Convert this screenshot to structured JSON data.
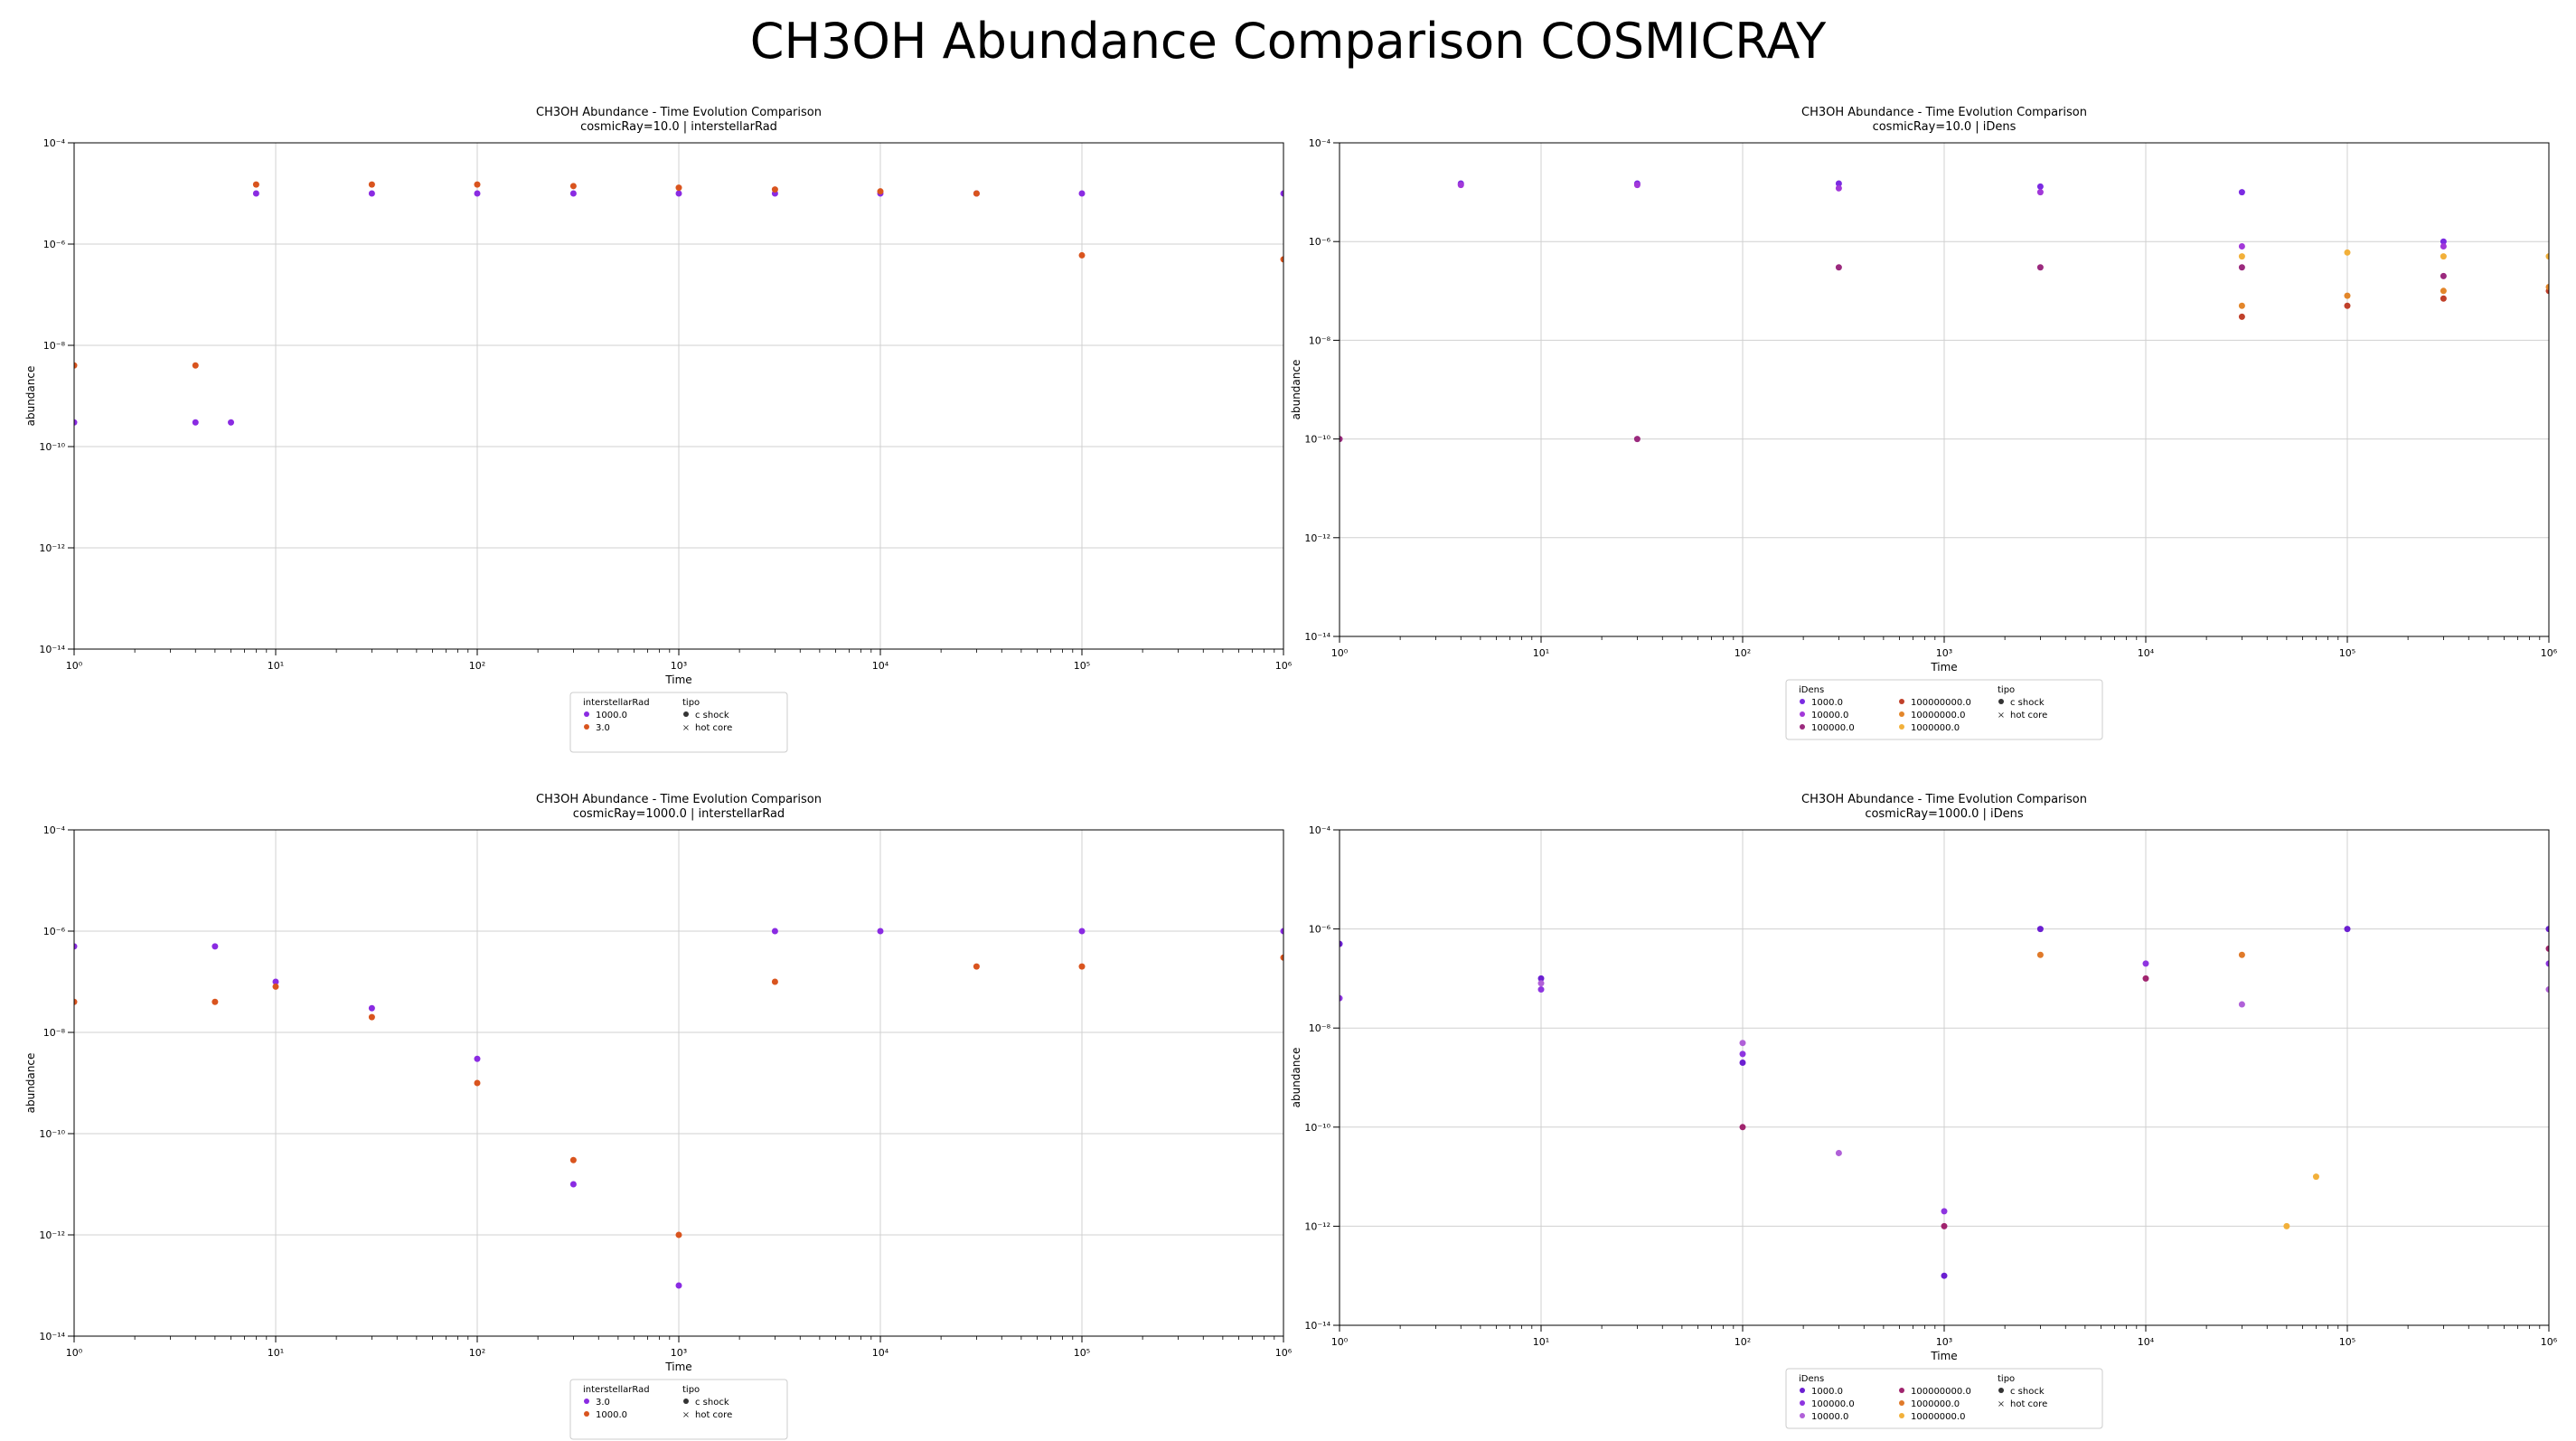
{
  "suptitle": "CH3OH Abundance Comparison COSMICRAY",
  "chart_data": [
    {
      "type": "scatter",
      "title": "CH3OH Abundance - Time Evolution Comparison",
      "subtitle": "cosmicRay=10.0 | interstellarRad",
      "xlabel": "Time",
      "ylabel": "abundance",
      "xscale": "log",
      "yscale": "log",
      "xlim": [
        1,
        1000000
      ],
      "ylim": [
        1e-14,
        0.0001
      ],
      "xticks": [
        1,
        10,
        100,
        1000,
        10000,
        100000,
        1000000
      ],
      "yticks": [
        1e-14,
        1e-12,
        1e-10,
        1e-08,
        1e-06,
        0.0001
      ],
      "grid": true,
      "legend_position": "below",
      "legend": {
        "hue_title": "interstellarRad",
        "hue_entries": [
          "1000.0",
          "3.0"
        ],
        "style_title": "tipo",
        "style_entries": [
          "c shock",
          "hot core"
        ]
      },
      "series": [
        {
          "name": "1000.0",
          "color": "#8a2be2",
          "points": [
            [
              1,
              3e-10
            ],
            [
              4,
              3e-10
            ],
            [
              6,
              3e-10
            ],
            [
              8,
              1e-05
            ],
            [
              30,
              1e-05
            ],
            [
              100,
              1e-05
            ],
            [
              300,
              1e-05
            ],
            [
              1000,
              1e-05
            ],
            [
              3000,
              1e-05
            ],
            [
              10000,
              1e-05
            ],
            [
              30000,
              1e-05
            ],
            [
              100000,
              1e-05
            ],
            [
              1000000,
              1e-05
            ]
          ]
        },
        {
          "name": "3.0",
          "color": "#d9541e",
          "points": [
            [
              1,
              4e-09
            ],
            [
              4,
              4e-09
            ],
            [
              8,
              1.5e-05
            ],
            [
              30,
              1.5e-05
            ],
            [
              100,
              1.5e-05
            ],
            [
              300,
              1.4e-05
            ],
            [
              1000,
              1.3e-05
            ],
            [
              3000,
              1.2e-05
            ],
            [
              10000,
              1.1e-05
            ],
            [
              30000,
              1e-05
            ],
            [
              100000,
              6e-07
            ],
            [
              1000000,
              5e-07
            ]
          ]
        }
      ]
    },
    {
      "type": "scatter",
      "title": "CH3OH Abundance - Time Evolution Comparison",
      "subtitle": "cosmicRay=10.0 | iDens",
      "xlabel": "Time",
      "ylabel": "abundance",
      "xscale": "log",
      "yscale": "log",
      "xlim": [
        1,
        1000000
      ],
      "ylim": [
        1e-14,
        0.0001
      ],
      "xticks": [
        1,
        10,
        100,
        1000,
        10000,
        100000,
        1000000
      ],
      "yticks": [
        1e-14,
        1e-12,
        1e-10,
        1e-08,
        1e-06,
        0.0001
      ],
      "grid": true,
      "legend_position": "below",
      "legend": {
        "hue_title": "iDens",
        "hue_entries": [
          "1000.0",
          "10000.0",
          "100000.0",
          "100000000.0",
          "10000000.0",
          "1000000.0"
        ],
        "style_title": "tipo",
        "style_entries": [
          "c shock",
          "hot core"
        ]
      },
      "series": [
        {
          "name": "1000.0",
          "color": "#7b2be2",
          "points": [
            [
              4,
              1.5e-05
            ],
            [
              30,
              1.5e-05
            ],
            [
              300,
              1.5e-05
            ],
            [
              3000,
              1.3e-05
            ],
            [
              30000,
              1e-05
            ],
            [
              300000,
              1e-06
            ]
          ]
        },
        {
          "name": "10000.0",
          "color": "#a238d9",
          "points": [
            [
              4,
              1.4e-05
            ],
            [
              30,
              1.4e-05
            ],
            [
              300,
              1.2e-05
            ],
            [
              3000,
              1e-05
            ],
            [
              30000,
              8e-07
            ],
            [
              300000,
              8e-07
            ]
          ]
        },
        {
          "name": "100000.0",
          "color": "#9b2a7e",
          "points": [
            [
              1,
              1e-10
            ],
            [
              30,
              1e-10
            ],
            [
              300,
              3e-07
            ],
            [
              3000,
              3e-07
            ],
            [
              30000,
              3e-07
            ],
            [
              300000,
              2e-07
            ]
          ]
        },
        {
          "name": "100000000.0",
          "color": "#c0402a",
          "points": [
            [
              30000,
              3e-08
            ],
            [
              100000,
              5e-08
            ],
            [
              300000,
              7e-08
            ],
            [
              1000000,
              1e-07
            ]
          ]
        },
        {
          "name": "10000000.0",
          "color": "#e3862a",
          "points": [
            [
              30000,
              5e-08
            ],
            [
              100000,
              8e-08
            ],
            [
              300000,
              1e-07
            ],
            [
              1000000,
              1.2e-07
            ]
          ]
        },
        {
          "name": "1000000.0",
          "color": "#f2b03a",
          "points": [
            [
              30000,
              5e-07
            ],
            [
              100000,
              6e-07
            ],
            [
              300000,
              5e-07
            ],
            [
              1000000,
              5e-07
            ]
          ]
        }
      ]
    },
    {
      "type": "scatter",
      "title": "CH3OH Abundance - Time Evolution Comparison",
      "subtitle": "cosmicRay=1000.0 | interstellarRad",
      "xlabel": "Time",
      "ylabel": "abundance",
      "xscale": "log",
      "yscale": "log",
      "xlim": [
        1,
        1000000
      ],
      "ylim": [
        1e-14,
        0.0001
      ],
      "xticks": [
        1,
        10,
        100,
        1000,
        10000,
        100000,
        1000000
      ],
      "yticks": [
        1e-14,
        1e-12,
        1e-10,
        1e-08,
        1e-06,
        0.0001
      ],
      "grid": true,
      "legend_position": "below",
      "legend": {
        "hue_title": "interstellarRad",
        "hue_entries": [
          "3.0",
          "1000.0"
        ],
        "style_title": "tipo",
        "style_entries": [
          "c shock",
          "hot core"
        ]
      },
      "series": [
        {
          "name": "3.0",
          "color": "#8a2be2",
          "points": [
            [
              1,
              5e-07
            ],
            [
              5,
              5e-07
            ],
            [
              10,
              1e-07
            ],
            [
              30,
              3e-08
            ],
            [
              100,
              3e-09
            ],
            [
              300,
              1e-11
            ],
            [
              1000,
              1e-13
            ],
            [
              3000,
              1e-06
            ],
            [
              10000,
              1e-06
            ],
            [
              100000,
              1e-06
            ],
            [
              1000000,
              1e-06
            ]
          ]
        },
        {
          "name": "1000.0",
          "color": "#d9541e",
          "points": [
            [
              1,
              4e-08
            ],
            [
              5,
              4e-08
            ],
            [
              10,
              8e-08
            ],
            [
              30,
              2e-08
            ],
            [
              100,
              1e-09
            ],
            [
              300,
              3e-11
            ],
            [
              1000,
              1e-12
            ],
            [
              3000,
              1e-07
            ],
            [
              30000,
              2e-07
            ],
            [
              100000,
              2e-07
            ],
            [
              1000000,
              3e-07
            ]
          ]
        }
      ]
    },
    {
      "type": "scatter",
      "title": "CH3OH Abundance - Time Evolution Comparison",
      "subtitle": "cosmicRay=1000.0 | iDens",
      "xlabel": "Time",
      "ylabel": "abundance",
      "xscale": "log",
      "yscale": "log",
      "xlim": [
        1,
        1000000
      ],
      "ylim": [
        1e-14,
        0.0001
      ],
      "xticks": [
        1,
        10,
        100,
        1000,
        10000,
        100000,
        1000000
      ],
      "yticks": [
        1e-14,
        1e-12,
        1e-10,
        1e-08,
        1e-06,
        0.0001
      ],
      "grid": true,
      "legend_position": "below",
      "legend": {
        "hue_title": "iDens",
        "hue_entries": [
          "1000.0",
          "100000.0",
          "10000.0",
          "100000000.0",
          "1000000.0",
          "10000000.0"
        ],
        "style_title": "tipo",
        "style_entries": [
          "c shock",
          "hot core"
        ]
      },
      "series": [
        {
          "name": "1000.0",
          "color": "#6b1fd1",
          "points": [
            [
              1,
              5e-07
            ],
            [
              10,
              1e-07
            ],
            [
              100,
              2e-09
            ],
            [
              1000,
              1e-13
            ],
            [
              3000,
              1e-06
            ],
            [
              100000,
              1e-06
            ],
            [
              1000000,
              1e-06
            ]
          ]
        },
        {
          "name": "100000.0",
          "color": "#8e35e0",
          "points": [
            [
              1,
              4e-08
            ],
            [
              10,
              6e-08
            ],
            [
              100,
              3e-09
            ],
            [
              1000,
              2e-12
            ],
            [
              10000,
              2e-07
            ],
            [
              1000000,
              2e-07
            ]
          ]
        },
        {
          "name": "10000.0",
          "color": "#b060d8",
          "points": [
            [
              10,
              8e-08
            ],
            [
              100,
              5e-09
            ],
            [
              300,
              3e-11
            ],
            [
              30000,
              3e-08
            ],
            [
              1000000,
              6e-08
            ]
          ]
        },
        {
          "name": "100000000.0",
          "color": "#a0246e",
          "points": [
            [
              100,
              1e-10
            ],
            [
              1000,
              1e-12
            ],
            [
              10000,
              1e-07
            ],
            [
              1000000,
              4e-07
            ]
          ]
        },
        {
          "name": "1000000.0",
          "color": "#e07a2a",
          "points": [
            [
              3000,
              3e-07
            ],
            [
              30000,
              3e-07
            ]
          ]
        },
        {
          "name": "10000000.0",
          "color": "#f2b03a",
          "points": [
            [
              50000,
              1e-12
            ],
            [
              70000,
              1e-11
            ]
          ]
        }
      ]
    }
  ]
}
